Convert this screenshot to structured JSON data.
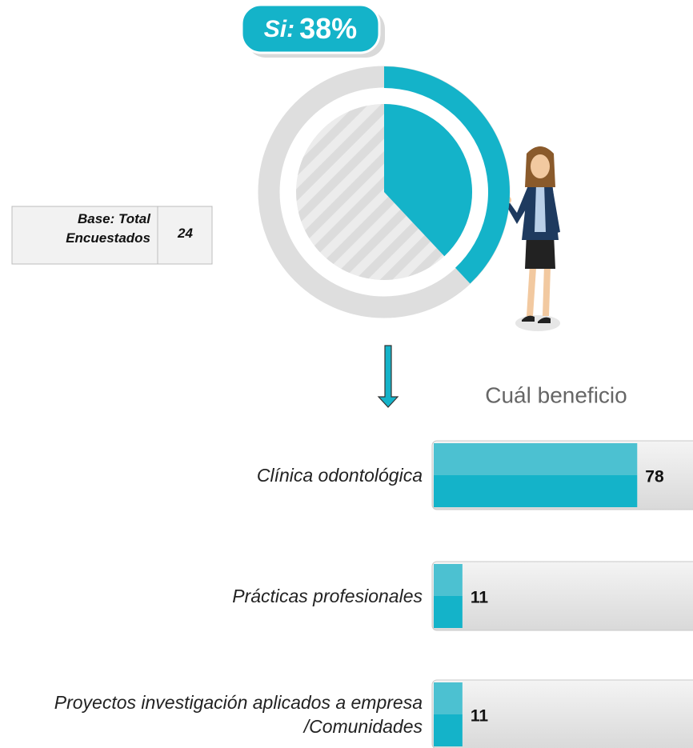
{
  "chart_data": [
    {
      "type": "donut",
      "categories": [
        "Si:"
      ],
      "values": [
        38
      ],
      "value_labels": [
        "38%"
      ],
      "color": "#14b3c9"
    },
    {
      "type": "hbar",
      "title": "Cuál beneficio",
      "categories": [
        "Clínica odontológica",
        "Prácticas profesionales",
        "Proyectos investigación aplicados a empresa /Comunidades"
      ],
      "values": [
        78,
        11,
        11
      ],
      "xlim": [
        0,
        100
      ],
      "color": "#14b3c9"
    }
  ],
  "base": {
    "label": "Base: Total Encuestados",
    "value": 24
  }
}
